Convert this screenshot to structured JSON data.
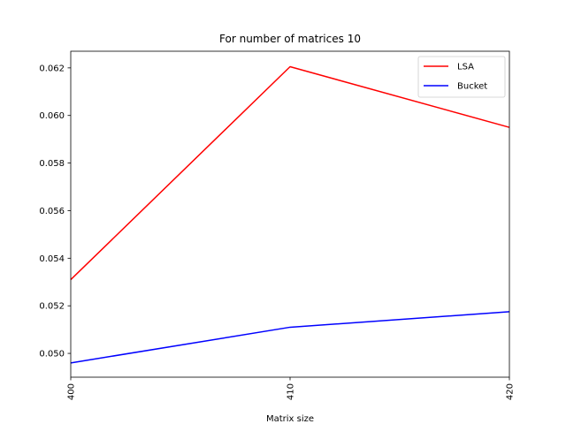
{
  "chart_data": {
    "type": "line",
    "title": "For number of matrices 10",
    "xlabel": "Matrix size",
    "ylabel": "",
    "x": [
      400,
      410,
      420
    ],
    "xticks": [
      400,
      410,
      420
    ],
    "xtick_labels": [
      "400",
      "410",
      "420"
    ],
    "xtick_rotation": "vertical",
    "xlim": [
      400,
      420
    ],
    "ylim": [
      0.049,
      0.0627
    ],
    "yticks": [
      0.05,
      0.052,
      0.054,
      0.056,
      0.058,
      0.06,
      0.062
    ],
    "ytick_labels": [
      "0.050",
      "0.052",
      "0.054",
      "0.056",
      "0.058",
      "0.060",
      "0.062"
    ],
    "grid": false,
    "legend_position": "top-right",
    "series": [
      {
        "name": "LSA",
        "color": "#ff0000",
        "values": [
          0.0531,
          0.06205,
          0.0595
        ]
      },
      {
        "name": "Bucket",
        "color": "#0000ff",
        "values": [
          0.0496,
          0.0511,
          0.05175
        ]
      }
    ]
  }
}
